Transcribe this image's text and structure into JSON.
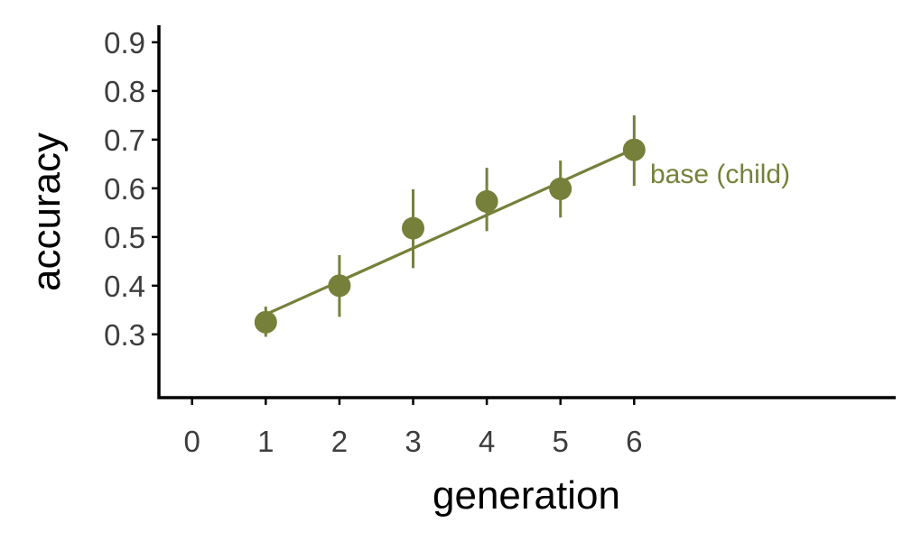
{
  "chart_data": {
    "type": "scatter",
    "xlabel": "generation",
    "ylabel": "accuracy",
    "xlim": [
      -0.45,
      9.55
    ],
    "ylim": [
      0.17,
      0.935
    ],
    "x_ticks": [
      0,
      1,
      2,
      3,
      4,
      5,
      6
    ],
    "y_ticks": [
      0.3,
      0.4,
      0.5,
      0.6,
      0.7,
      0.8,
      0.9
    ],
    "grid": false,
    "legend": "none",
    "series": [
      {
        "name": "base (child)",
        "color": "#77803a",
        "points": [
          {
            "x": 1,
            "y": 0.325,
            "err_low": 0.295,
            "err_high": 0.357
          },
          {
            "x": 2,
            "y": 0.4,
            "err_low": 0.336,
            "err_high": 0.463
          },
          {
            "x": 3,
            "y": 0.518,
            "err_low": 0.436,
            "err_high": 0.598
          },
          {
            "x": 4,
            "y": 0.573,
            "err_low": 0.512,
            "err_high": 0.642
          },
          {
            "x": 5,
            "y": 0.599,
            "err_low": 0.54,
            "err_high": 0.657
          },
          {
            "x": 6,
            "y": 0.679,
            "err_low": 0.605,
            "err_high": 0.75
          }
        ],
        "fit_line": {
          "x": [
            1,
            6
          ],
          "y": [
            0.341,
            0.681
          ]
        }
      }
    ]
  }
}
